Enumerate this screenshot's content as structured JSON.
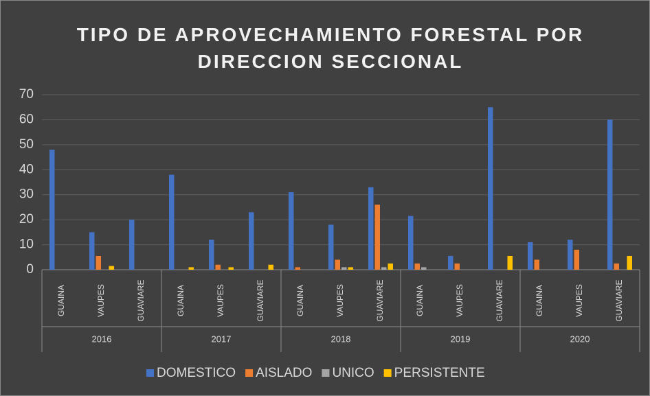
{
  "chart_data": {
    "type": "bar",
    "title": "TIPO DE APROVECHAMIENTO FORESTAL POR DIRECCION SECCIONAL",
    "categories": [
      "GUAINA",
      "VAUPES",
      "GUAVIARE",
      "GUAINA",
      "VAUPES",
      "GUAVIARE",
      "GUAINA",
      "VAUPES",
      "GUAVIARE",
      "GUAINA",
      "VAUPES",
      "GUAVIARE",
      "GUAINA",
      "VAUPES",
      "GUAVIARE"
    ],
    "groups": [
      "2016",
      "2017",
      "2018",
      "2019",
      "2020"
    ],
    "series": [
      {
        "name": "DOMESTICO",
        "color": "#4472c4",
        "values": [
          48,
          15,
          20,
          38,
          12,
          23,
          31,
          18,
          33,
          21.5,
          5.5,
          65,
          11,
          12,
          60
        ]
      },
      {
        "name": "AISLADO",
        "color": "#ed7d31",
        "values": [
          0,
          5.5,
          0,
          0,
          2,
          0,
          1,
          4,
          26,
          2.5,
          2.5,
          0,
          4,
          8,
          2.5
        ]
      },
      {
        "name": "UNICO",
        "color": "#a5a5a5",
        "values": [
          0,
          0,
          0,
          0,
          0,
          0,
          0,
          1,
          1,
          1,
          0,
          0,
          0,
          0,
          0
        ]
      },
      {
        "name": "PERSISTENTE",
        "color": "#ffc000",
        "values": [
          0,
          1.5,
          0,
          1,
          1,
          2,
          0,
          1,
          2.5,
          0,
          0,
          5.5,
          0,
          0,
          5.5
        ]
      }
    ],
    "ylim": [
      0,
      70
    ],
    "yticks": [
      0,
      10,
      20,
      30,
      40,
      50,
      60,
      70
    ],
    "grid": true,
    "legend": "bottom"
  }
}
